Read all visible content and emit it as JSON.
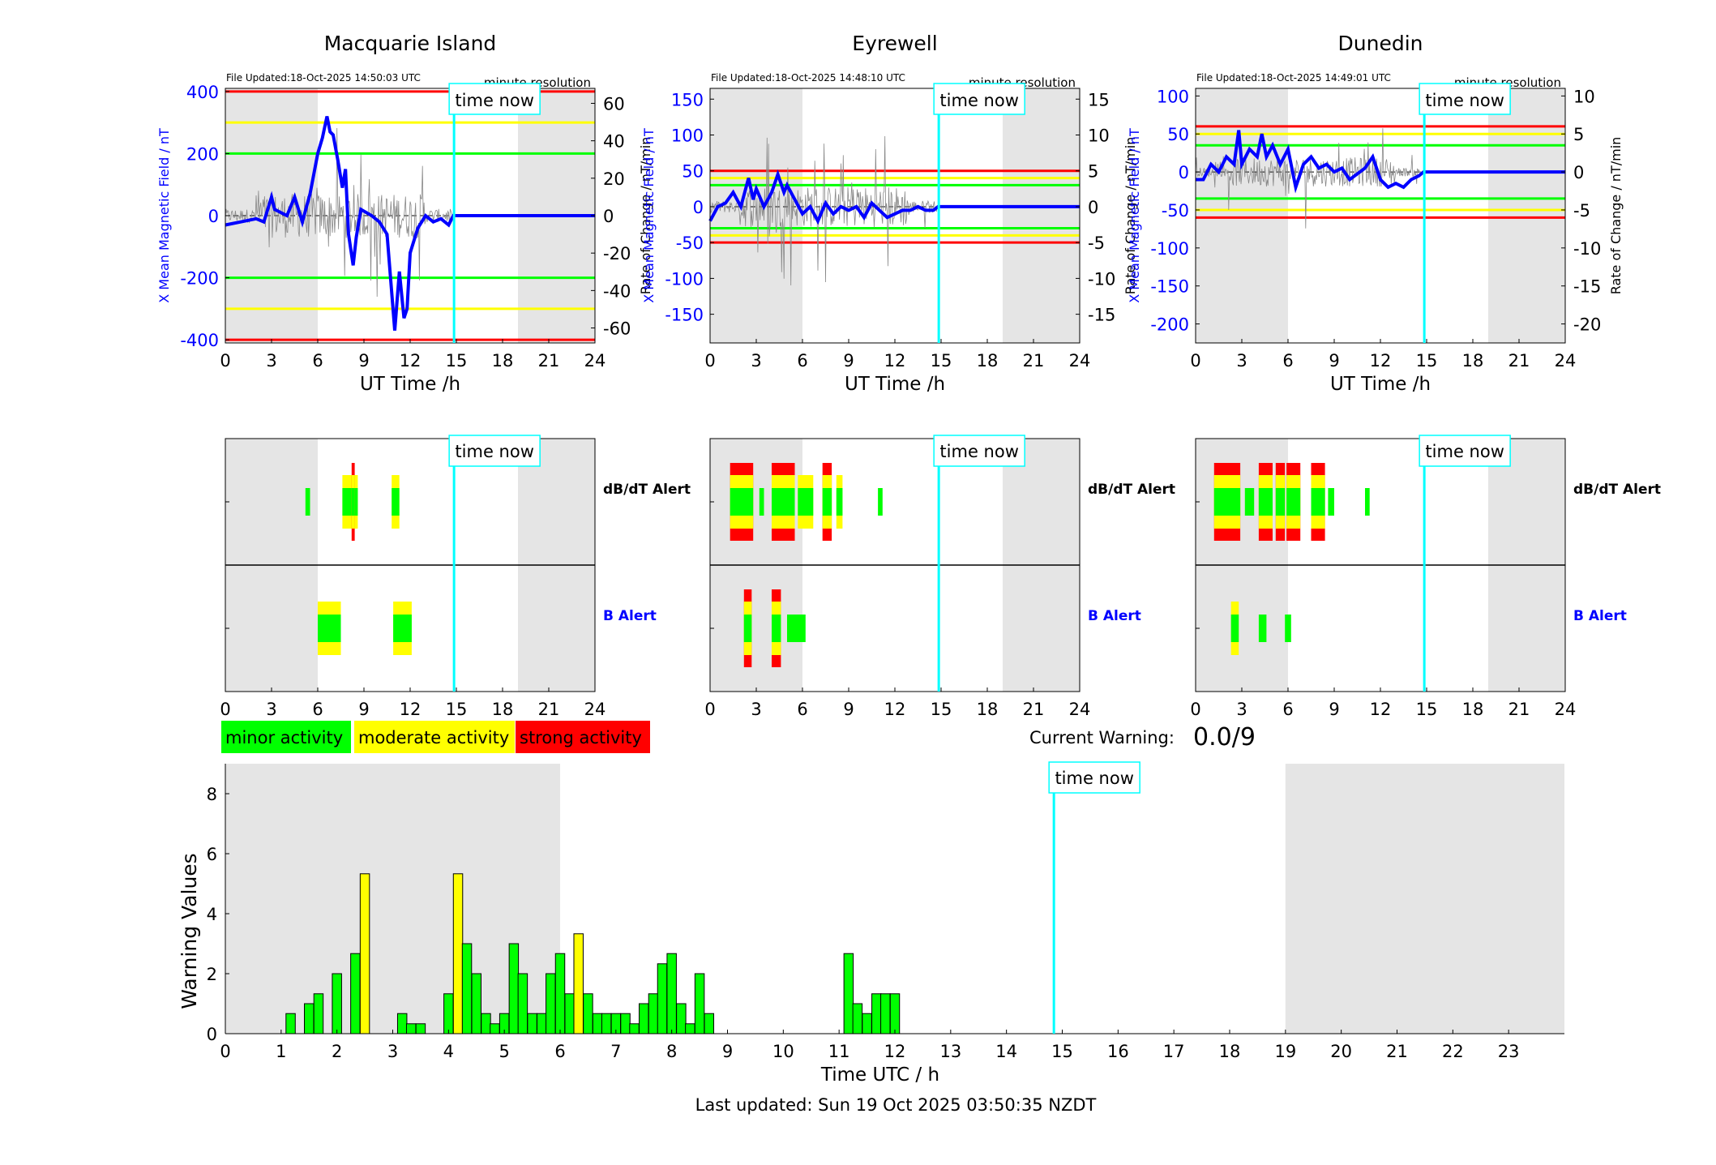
{
  "colors": {
    "red": "#ff0000",
    "yellow": "#ffff00",
    "green": "#00ff00",
    "blue": "#0000ff",
    "cyan": "#00ffff",
    "night": "#e5e5e5",
    "raw": "#888888"
  },
  "stations": [
    {
      "name": "Macquarie Island",
      "file_updated": "File Updated:18-Oct-2025 14:50:03 UTC",
      "resolution": "minute resolution",
      "ylabel_left": "X Mean Magnetic Field / nT",
      "ylabel_right": "Rate of Change / nT/min",
      "xlabel": "UT Time /h",
      "ylim_left": [
        -410,
        410
      ],
      "yticks_left": [
        -400,
        -200,
        0,
        200,
        400
      ],
      "ylim_right": [
        -68,
        68
      ],
      "yticks_right": [
        -60,
        -40,
        -20,
        0,
        20,
        40,
        60
      ],
      "thresholds": {
        "red": 400,
        "yellow": 300,
        "green": 200
      },
      "night": [
        [
          0,
          6
        ],
        [
          19,
          24
        ]
      ],
      "field_trace": [
        [
          0,
          -30
        ],
        [
          1,
          -20
        ],
        [
          2,
          -10
        ],
        [
          2.5,
          -20
        ],
        [
          3,
          60
        ],
        [
          3.2,
          20
        ],
        [
          4,
          0
        ],
        [
          4.5,
          60
        ],
        [
          5,
          -20
        ],
        [
          5.5,
          70
        ],
        [
          6,
          200
        ],
        [
          6.3,
          250
        ],
        [
          6.6,
          320
        ],
        [
          6.8,
          270
        ],
        [
          7,
          260
        ],
        [
          7.3,
          180
        ],
        [
          7.6,
          90
        ],
        [
          7.8,
          150
        ],
        [
          8,
          -60
        ],
        [
          8.3,
          -160
        ],
        [
          8.5,
          -70
        ],
        [
          8.8,
          20
        ],
        [
          9.5,
          0
        ],
        [
          10,
          -20
        ],
        [
          10.5,
          -60
        ],
        [
          11,
          -370
        ],
        [
          11.3,
          -180
        ],
        [
          11.6,
          -330
        ],
        [
          11.8,
          -300
        ],
        [
          12,
          -120
        ],
        [
          12.5,
          -40
        ],
        [
          13,
          0
        ],
        [
          13.5,
          -20
        ],
        [
          14,
          -10
        ],
        [
          14.5,
          -30
        ],
        [
          14.8,
          0
        ],
        [
          24,
          0
        ]
      ],
      "dbdt_alerts": [
        {
          "x0": 5.2,
          "x1": 5.5,
          "level": 1
        },
        {
          "x0": 7.6,
          "x1": 8.6,
          "level": 2
        },
        {
          "x0": 8.2,
          "x1": 8.4,
          "level": 3
        },
        {
          "x0": 10.8,
          "x1": 11.3,
          "level": 2
        }
      ],
      "b_alerts": [
        {
          "x0": 6,
          "x1": 7.5,
          "level": 2
        },
        {
          "x0": 10.9,
          "x1": 12.1,
          "level": 2
        }
      ]
    },
    {
      "name": "Eyrewell",
      "file_updated": "File Updated:18-Oct-2025 14:48:10 UTC",
      "resolution": "minute resolution",
      "ylabel_left": "X Mean Magnetic Field / nT",
      "ylabel_right": "Rate of Change / nT/min",
      "xlabel": "UT Time /h",
      "ylim_left": [
        -190,
        165
      ],
      "yticks_left": [
        -150,
        -100,
        -50,
        0,
        50,
        100,
        150
      ],
      "ylim_right": [
        -19,
        16.5
      ],
      "yticks_right": [
        -15,
        -10,
        -5,
        0,
        5,
        10,
        15
      ],
      "thresholds": {
        "red": 50,
        "yellow": 40,
        "green": 30
      },
      "night": [
        [
          0,
          6
        ],
        [
          19,
          24
        ]
      ],
      "field_trace": [
        [
          0,
          -20
        ],
        [
          0.5,
          0
        ],
        [
          1,
          5
        ],
        [
          1.5,
          20
        ],
        [
          2,
          0
        ],
        [
          2.5,
          40
        ],
        [
          2.8,
          10
        ],
        [
          3,
          25
        ],
        [
          3.5,
          0
        ],
        [
          4,
          20
        ],
        [
          4.4,
          45
        ],
        [
          4.8,
          20
        ],
        [
          5,
          30
        ],
        [
          5.5,
          10
        ],
        [
          6,
          -10
        ],
        [
          6.5,
          0
        ],
        [
          7,
          -20
        ],
        [
          7.5,
          5
        ],
        [
          8,
          -10
        ],
        [
          8.5,
          0
        ],
        [
          9,
          -5
        ],
        [
          9.5,
          0
        ],
        [
          10,
          -15
        ],
        [
          10.5,
          5
        ],
        [
          11,
          -5
        ],
        [
          11.5,
          -15
        ],
        [
          12,
          -10
        ],
        [
          12.5,
          -5
        ],
        [
          13,
          -5
        ],
        [
          13.5,
          0
        ],
        [
          14,
          -5
        ],
        [
          14.5,
          -5
        ],
        [
          14.8,
          0
        ],
        [
          24,
          0
        ]
      ],
      "dbdt_alerts": [
        {
          "x0": 1.3,
          "x1": 2.8,
          "level": 3
        },
        {
          "x0": 3.2,
          "x1": 3.5,
          "level": 1
        },
        {
          "x0": 4,
          "x1": 5.5,
          "level": 3
        },
        {
          "x0": 5.7,
          "x1": 6.7,
          "level": 2
        },
        {
          "x0": 7.3,
          "x1": 7.9,
          "level": 3
        },
        {
          "x0": 8.2,
          "x1": 8.6,
          "level": 2
        },
        {
          "x0": 10.9,
          "x1": 11.2,
          "level": 1
        }
      ],
      "b_alerts": [
        {
          "x0": 2.2,
          "x1": 2.7,
          "level": 3
        },
        {
          "x0": 4,
          "x1": 4.6,
          "level": 3
        },
        {
          "x0": 5,
          "x1": 6.2,
          "level": 1
        }
      ]
    },
    {
      "name": "Dunedin",
      "file_updated": "File Updated:18-Oct-2025 14:49:01 UTC",
      "resolution": "minute resolution",
      "ylabel_left": "X Mean Magnetic Field / nT",
      "ylabel_right": "Rate of Change / nT/min",
      "xlabel": "UT Time /h",
      "ylim_left": [
        -225,
        110
      ],
      "yticks_left": [
        -200,
        -150,
        -100,
        -50,
        0,
        50,
        100
      ],
      "ylim_right": [
        -22.5,
        11
      ],
      "yticks_right": [
        -20,
        -15,
        -10,
        -5,
        0,
        5,
        10
      ],
      "thresholds": {
        "red": 60,
        "yellow": 50,
        "green": 35
      },
      "night": [
        [
          0,
          6
        ],
        [
          19,
          24
        ]
      ],
      "field_trace": [
        [
          0,
          -10
        ],
        [
          0.5,
          -10
        ],
        [
          1,
          10
        ],
        [
          1.5,
          0
        ],
        [
          2,
          20
        ],
        [
          2.5,
          10
        ],
        [
          2.8,
          55
        ],
        [
          3,
          10
        ],
        [
          3.5,
          30
        ],
        [
          4,
          20
        ],
        [
          4.3,
          50
        ],
        [
          4.6,
          20
        ],
        [
          5,
          35
        ],
        [
          5.5,
          10
        ],
        [
          6,
          30
        ],
        [
          6.5,
          -20
        ],
        [
          7,
          10
        ],
        [
          7.5,
          20
        ],
        [
          8,
          5
        ],
        [
          8.5,
          10
        ],
        [
          9,
          0
        ],
        [
          9.5,
          5
        ],
        [
          10,
          -10
        ],
        [
          11,
          5
        ],
        [
          11.5,
          20
        ],
        [
          12,
          -10
        ],
        [
          12.5,
          -20
        ],
        [
          13,
          -15
        ],
        [
          13.5,
          -20
        ],
        [
          14,
          -10
        ],
        [
          14.5,
          -5
        ],
        [
          14.8,
          0
        ],
        [
          24,
          0
        ]
      ],
      "dbdt_alerts": [
        {
          "x0": 1.2,
          "x1": 2.9,
          "level": 3
        },
        {
          "x0": 3.2,
          "x1": 3.8,
          "level": 1
        },
        {
          "x0": 4.1,
          "x1": 5.0,
          "level": 3
        },
        {
          "x0": 5.2,
          "x1": 5.8,
          "level": 3
        },
        {
          "x0": 5.9,
          "x1": 6.8,
          "level": 3
        },
        {
          "x0": 7.5,
          "x1": 8.4,
          "level": 3
        },
        {
          "x0": 8.6,
          "x1": 9,
          "level": 1
        },
        {
          "x0": 11,
          "x1": 11.3,
          "level": 1
        }
      ],
      "b_alerts": [
        {
          "x0": 2.3,
          "x1": 2.8,
          "level": 2
        },
        {
          "x0": 4.1,
          "x1": 4.6,
          "level": 1
        },
        {
          "x0": 5.8,
          "x1": 6.2,
          "level": 1
        }
      ]
    }
  ],
  "time_now_label": "time now",
  "time_now_hour": 14.85,
  "alert_labels": {
    "dbdt": "dB/dT Alert",
    "b": "B Alert"
  },
  "legend": [
    "minor activity",
    "moderate activity",
    "strong activity"
  ],
  "current_warning": {
    "label": "Current Warning:",
    "value": "0.0/9"
  },
  "chart_data": {
    "type": "bar",
    "xlabel": "Time UTC / h",
    "ylabel": "Warning Values",
    "xlim": [
      0,
      24
    ],
    "ylim": [
      0,
      9
    ],
    "xticks": [
      0,
      1,
      2,
      3,
      4,
      5,
      6,
      7,
      8,
      9,
      10,
      11,
      12,
      13,
      14,
      15,
      16,
      17,
      18,
      19,
      20,
      21,
      22,
      23
    ],
    "yticks": [
      0,
      2,
      4,
      6,
      8
    ],
    "night": [
      [
        0,
        6
      ],
      [
        19,
        24
      ]
    ],
    "time_now_hour": 14.85,
    "bar_width_h": 0.1667,
    "bars": [
      [
        1.17,
        0.67,
        1
      ],
      [
        1.5,
        1,
        1
      ],
      [
        1.67,
        1.33,
        1
      ],
      [
        2,
        2,
        1
      ],
      [
        2.33,
        2.67,
        1
      ],
      [
        2.5,
        5.33,
        2
      ],
      [
        3.17,
        0.67,
        1
      ],
      [
        3.33,
        0.33,
        1
      ],
      [
        3.5,
        0.33,
        1
      ],
      [
        4,
        1.33,
        1
      ],
      [
        4.17,
        5.33,
        2
      ],
      [
        4.33,
        3,
        1
      ],
      [
        4.5,
        2,
        1
      ],
      [
        4.67,
        0.67,
        1
      ],
      [
        4.83,
        0.33,
        1
      ],
      [
        5,
        0.67,
        1
      ],
      [
        5.17,
        3,
        1
      ],
      [
        5.33,
        2,
        1
      ],
      [
        5.5,
        0.67,
        1
      ],
      [
        5.67,
        0.67,
        1
      ],
      [
        5.83,
        2,
        1
      ],
      [
        6,
        2.67,
        1
      ],
      [
        6.17,
        1.33,
        1
      ],
      [
        6.33,
        3.33,
        2
      ],
      [
        6.5,
        1.33,
        1
      ],
      [
        6.67,
        0.67,
        1
      ],
      [
        6.83,
        0.67,
        1
      ],
      [
        7,
        0.67,
        1
      ],
      [
        7.17,
        0.67,
        1
      ],
      [
        7.33,
        0.33,
        1
      ],
      [
        7.5,
        1,
        1
      ],
      [
        7.67,
        1.33,
        1
      ],
      [
        7.83,
        2.33,
        1
      ],
      [
        8,
        2.67,
        1
      ],
      [
        8.17,
        1,
        1
      ],
      [
        8.33,
        0.33,
        1
      ],
      [
        8.5,
        2,
        1
      ],
      [
        8.67,
        0.67,
        1
      ],
      [
        11.17,
        2.67,
        1
      ],
      [
        11.33,
        1,
        1
      ],
      [
        11.5,
        0.67,
        1
      ],
      [
        11.67,
        1.33,
        1
      ],
      [
        11.83,
        1.33,
        1
      ],
      [
        12,
        1.33,
        1
      ]
    ]
  },
  "last_updated": "Last updated: Sun 19 Oct 2025 03:50:35 NZDT"
}
